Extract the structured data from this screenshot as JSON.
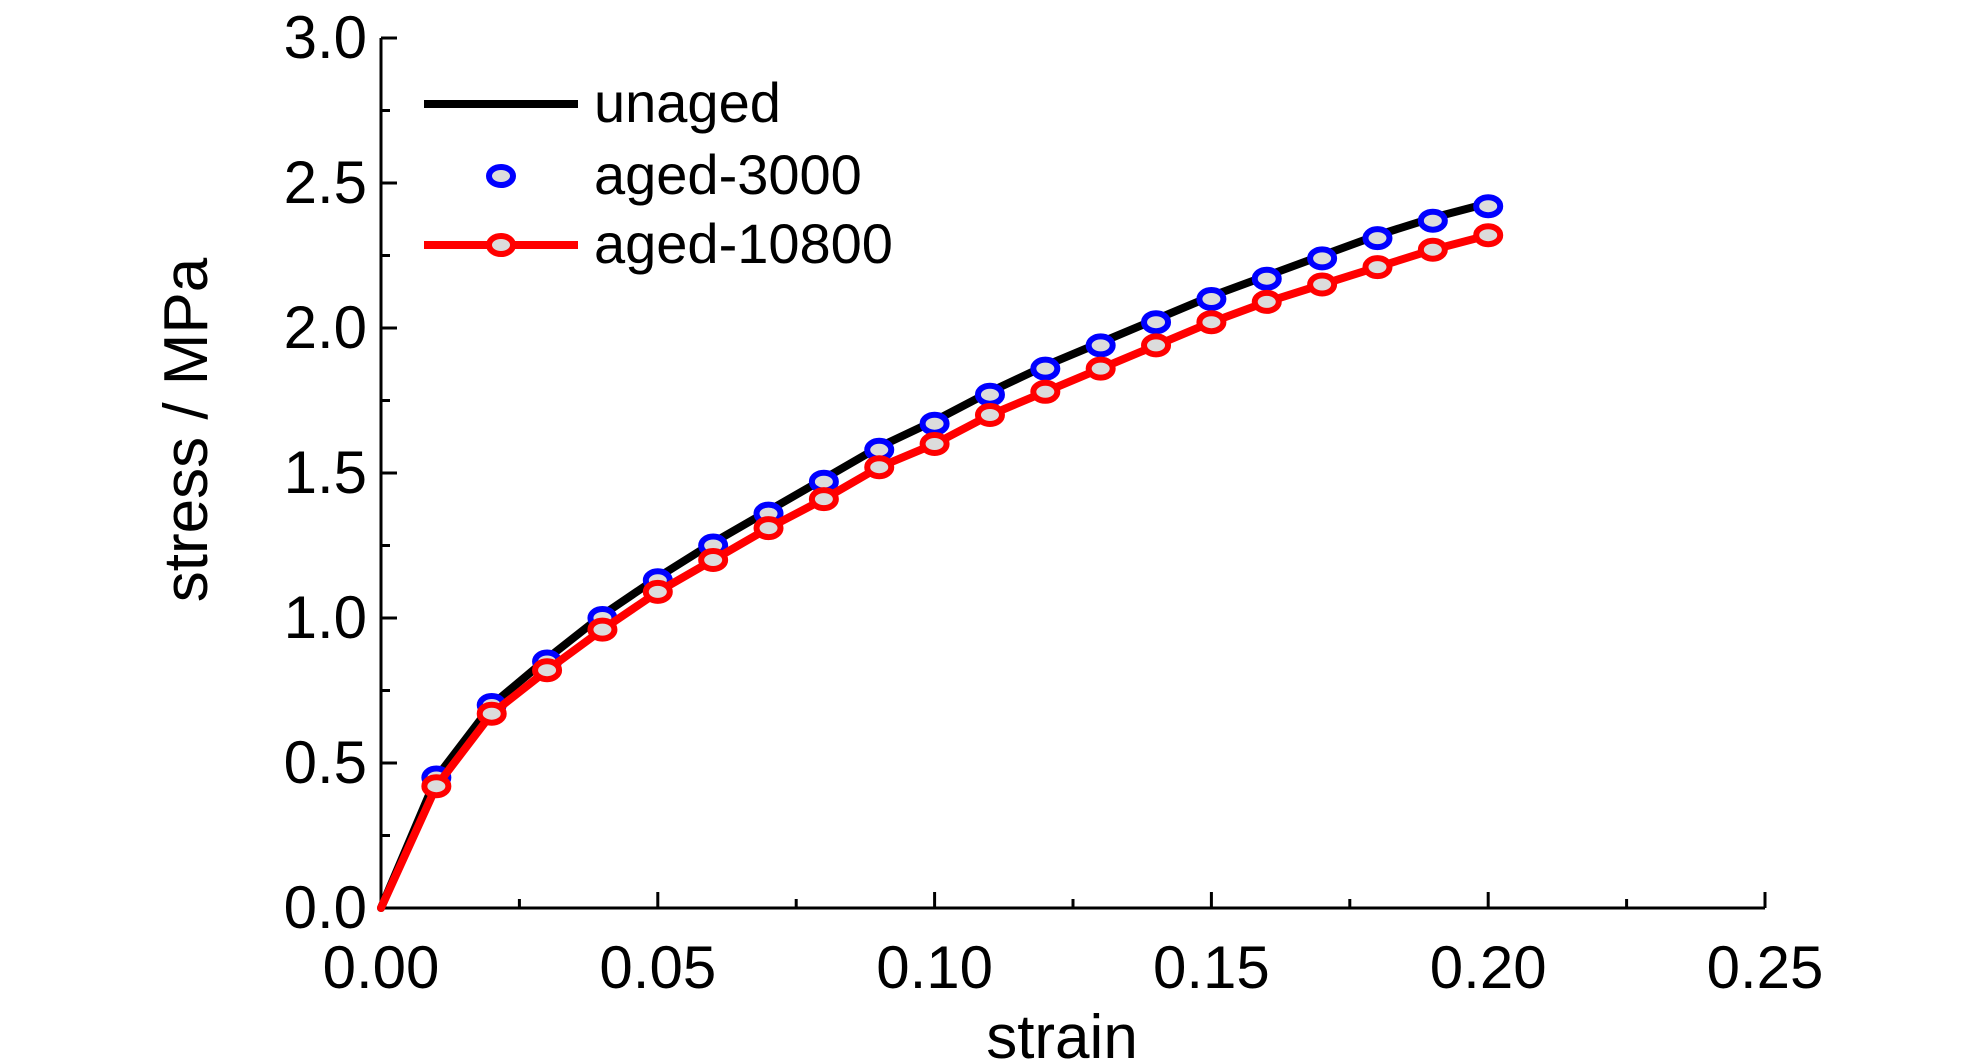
{
  "chart_data": {
    "type": "line",
    "title": "",
    "xlabel": "strain",
    "ylabel": "stress / MPa",
    "xlim": [
      0.0,
      0.25
    ],
    "ylim": [
      0.0,
      3.0
    ],
    "x_ticks": [
      "0.00",
      "0.05",
      "0.10",
      "0.15",
      "0.20",
      "0.25"
    ],
    "y_ticks": [
      "0.0",
      "0.5",
      "1.0",
      "1.5",
      "2.0",
      "2.5",
      "3.0"
    ],
    "grid": false,
    "legend_position": "top-left",
    "x": [
      0.0,
      0.01,
      0.02,
      0.03,
      0.04,
      0.05,
      0.06,
      0.07,
      0.08,
      0.09,
      0.1,
      0.11,
      0.12,
      0.13,
      0.14,
      0.15,
      0.16,
      0.17,
      0.18,
      0.19,
      0.2
    ],
    "series": [
      {
        "name": "unaged",
        "style": "line",
        "color": "#000000",
        "values": [
          0.0,
          0.45,
          0.7,
          0.86,
          1.01,
          1.14,
          1.26,
          1.37,
          1.48,
          1.59,
          1.68,
          1.78,
          1.87,
          1.95,
          2.03,
          2.11,
          2.18,
          2.25,
          2.32,
          2.38,
          2.43
        ]
      },
      {
        "name": "aged-3000",
        "style": "markers",
        "color": "#0000ff",
        "values": [
          0.0,
          0.45,
          0.7,
          0.85,
          1.0,
          1.13,
          1.25,
          1.36,
          1.47,
          1.58,
          1.67,
          1.77,
          1.86,
          1.94,
          2.02,
          2.1,
          2.17,
          2.24,
          2.31,
          2.37,
          2.42
        ]
      },
      {
        "name": "aged-10800",
        "style": "line+markers",
        "color": "#ff0000",
        "values": [
          0.0,
          0.42,
          0.67,
          0.82,
          0.96,
          1.09,
          1.2,
          1.31,
          1.41,
          1.52,
          1.6,
          1.7,
          1.78,
          1.86,
          1.94,
          2.02,
          2.09,
          2.15,
          2.21,
          2.27,
          2.32
        ]
      }
    ]
  }
}
